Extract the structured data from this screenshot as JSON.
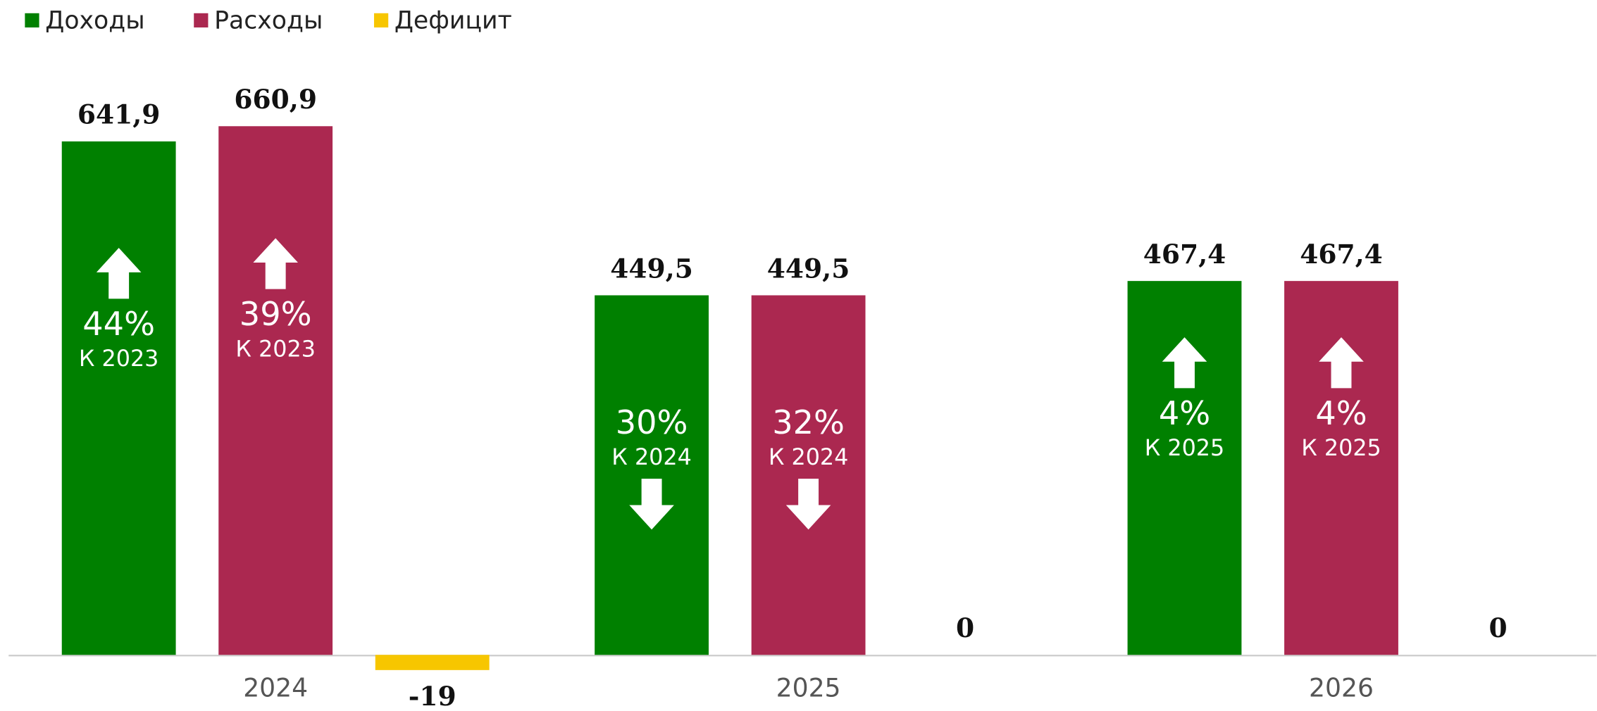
{
  "chart_data": {
    "type": "bar",
    "categories": [
      "2024",
      "2025",
      "2026"
    ],
    "ylim": [
      -60,
      750
    ],
    "legend": "top-left",
    "series": [
      {
        "name": "Доходы",
        "color": "#008000",
        "values": [
          641.9,
          449.5,
          467.4
        ],
        "value_labels": [
          "641,9",
          "449,5",
          "467,4"
        ],
        "annotations": [
          {
            "text": "44%",
            "sub": "К 2023",
            "direction": "up"
          },
          {
            "text": "30%",
            "sub": "К 2024",
            "direction": "down"
          },
          {
            "text": "4%",
            "sub": "К 2025",
            "direction": "up"
          }
        ]
      },
      {
        "name": "Расходы",
        "color": "#ab2850",
        "values": [
          660.9,
          449.5,
          467.4
        ],
        "value_labels": [
          "660,9",
          "449,5",
          "467,4"
        ],
        "annotations": [
          {
            "text": "39%",
            "sub": "К 2023",
            "direction": "up"
          },
          {
            "text": "32%",
            "sub": "К 2024",
            "direction": "down"
          },
          {
            "text": "4%",
            "sub": "К 2025",
            "direction": "up"
          }
        ]
      },
      {
        "name": "Дефицит",
        "color": "#f7c600",
        "values": [
          -19,
          0,
          0
        ]
      }
    ]
  }
}
